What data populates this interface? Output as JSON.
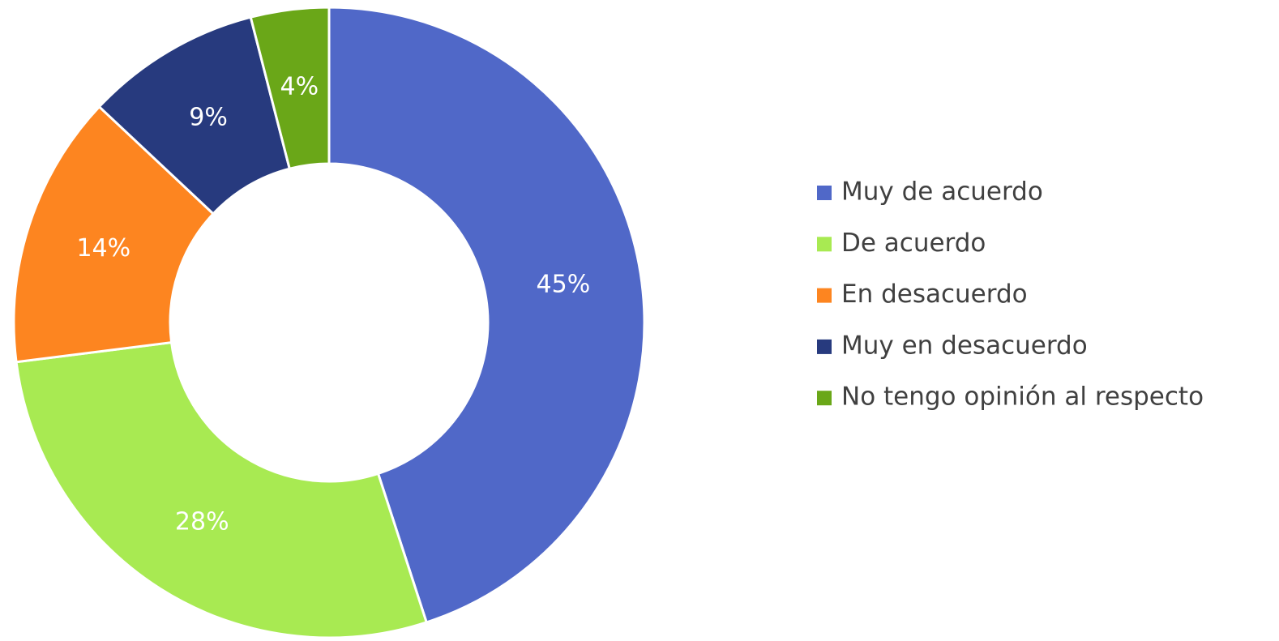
{
  "chart_data": {
    "type": "donut",
    "categories": [
      "Muy de acuerdo",
      "De acuerdo",
      "En desacuerdo",
      "Muy en desacuerdo",
      "No tengo opinión al respecto"
    ],
    "values": [
      45,
      28,
      14,
      9,
      4
    ],
    "value_labels": [
      "45%",
      "28%",
      "14%",
      "9%",
      "4%"
    ],
    "colors": [
      "#5068c8",
      "#a8ea52",
      "#fd8520",
      "#273a7e",
      "#6aa718"
    ],
    "legend": "right"
  }
}
